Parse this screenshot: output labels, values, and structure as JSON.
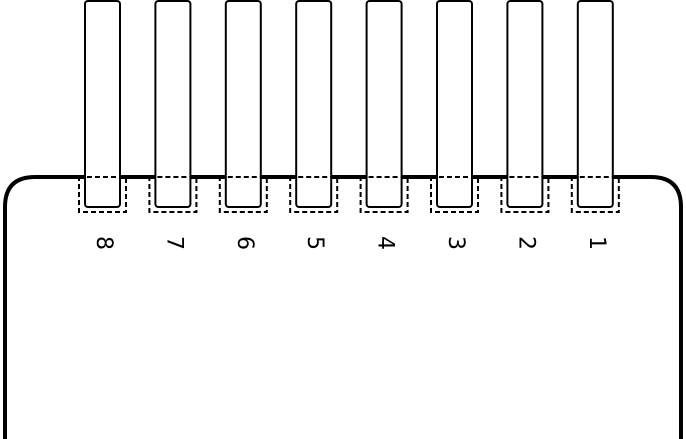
{
  "pins": [
    {
      "label": "8"
    },
    {
      "label": "7"
    },
    {
      "label": "6"
    },
    {
      "label": "5"
    },
    {
      "label": "4"
    },
    {
      "label": "3"
    },
    {
      "label": "2"
    },
    {
      "label": "1"
    }
  ],
  "colors": {
    "stroke": "#000000",
    "background": "#ffffff"
  }
}
